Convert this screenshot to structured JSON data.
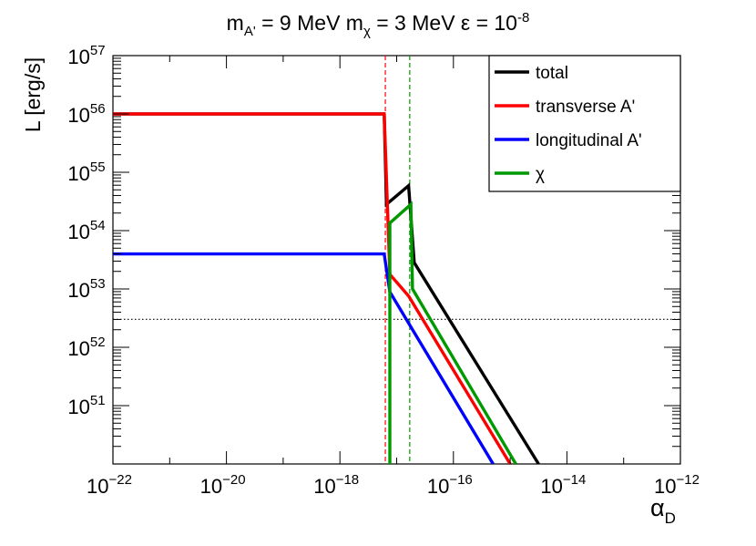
{
  "chart_data": {
    "type": "line",
    "title": {
      "m": "m",
      "mA_sub": "A'",
      "mA_val": " = 9 MeV ",
      "mchi_sub": "χ",
      "mchi_val": " = 3 MeV ",
      "eps": "ε = 10",
      "eps_exp": "-8"
    },
    "xlabel": {
      "main": "α",
      "sub": "D"
    },
    "ylabel": "L [erg/s]",
    "x_scale": "log",
    "y_scale": "log",
    "xlim_log10": [
      -22,
      -12
    ],
    "ylim_log10": [
      50,
      57
    ],
    "x_ticks": [
      {
        "base": "10",
        "exp": "−22",
        "log10": -22
      },
      {
        "base": "10",
        "exp": "−20",
        "log10": -20
      },
      {
        "base": "10",
        "exp": "−18",
        "log10": -18
      },
      {
        "base": "10",
        "exp": "−16",
        "log10": -16
      },
      {
        "base": "10",
        "exp": "−14",
        "log10": -14
      },
      {
        "base": "10",
        "exp": "−12",
        "log10": -12
      }
    ],
    "y_ticks": [
      {
        "base": "10",
        "exp": "51",
        "log10": 51
      },
      {
        "base": "10",
        "exp": "52",
        "log10": 52
      },
      {
        "base": "10",
        "exp": "53",
        "log10": 53
      },
      {
        "base": "10",
        "exp": "54",
        "log10": 54
      },
      {
        "base": "10",
        "exp": "55",
        "log10": 55
      },
      {
        "base": "10",
        "exp": "56",
        "log10": 56
      },
      {
        "base": "10",
        "exp": "57",
        "log10": 57
      }
    ],
    "series": [
      {
        "name": "total",
        "color": "#000000",
        "points_log10": [
          [
            -22,
            56.0
          ],
          [
            -17.22,
            56.0
          ],
          [
            -17.18,
            54.45
          ],
          [
            -16.79,
            54.77
          ],
          [
            -16.69,
            53.45
          ],
          [
            -14.5,
            50.0
          ]
        ]
      },
      {
        "name": "transverse A'",
        "color": "#ff0000",
        "points_log10": [
          [
            -22,
            56.0
          ],
          [
            -17.22,
            56.0
          ],
          [
            -17.12,
            53.25
          ],
          [
            -16.79,
            52.88
          ],
          [
            -15.0,
            50.0
          ]
        ]
      },
      {
        "name": "longitudinal A'",
        "color": "#0000ff",
        "points_log10": [
          [
            -22,
            53.6
          ],
          [
            -17.22,
            53.6
          ],
          [
            -17.12,
            52.95
          ],
          [
            -15.3,
            50.0
          ]
        ]
      },
      {
        "name": "χ",
        "color": "#009900",
        "points_log10": [
          [
            -17.12,
            50.0
          ],
          [
            -17.12,
            54.13
          ],
          [
            -16.75,
            54.45
          ],
          [
            -16.72,
            53.0
          ],
          [
            -14.9,
            50.0
          ]
        ]
      }
    ],
    "reference_lines": [
      {
        "orientation": "vertical",
        "x_log10": -17.2,
        "color": "#ff0000",
        "style": "dashed"
      },
      {
        "orientation": "vertical",
        "x_log10": -16.77,
        "color": "#009900",
        "style": "dashed"
      },
      {
        "orientation": "horizontal",
        "y_log10": 52.48,
        "color": "#000000",
        "style": "dotted"
      }
    ],
    "legend_position": "top-right"
  }
}
